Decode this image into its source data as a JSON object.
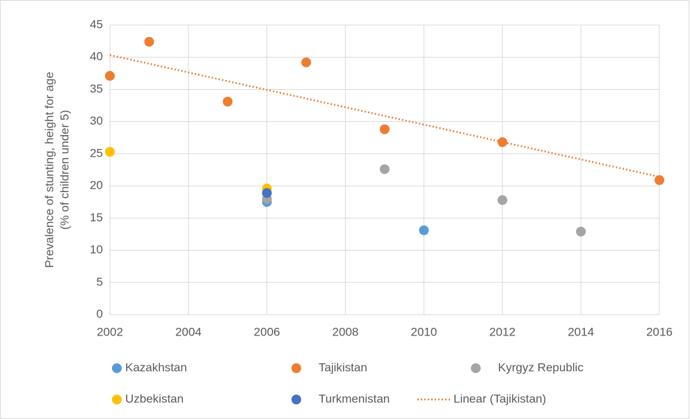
{
  "chart_data": {
    "type": "scatter",
    "y_label": [
      "Prevalence of stunting, height for age",
      "(% of children under 5)"
    ],
    "xlim": [
      2002,
      2016
    ],
    "xticks": [
      2002,
      2004,
      2006,
      2008,
      2010,
      2012,
      2014,
      2016
    ],
    "ylim": [
      0,
      45
    ],
    "yticks": [
      0,
      5,
      10,
      15,
      20,
      25,
      30,
      35,
      40,
      45
    ],
    "grid": true,
    "legend": "bottom",
    "series": [
      {
        "name": "Kazakhstan",
        "color": "#5b9bd5",
        "x": [
          2006,
          2010
        ],
        "values": [
          17.5,
          13.1
        ]
      },
      {
        "name": "Tajikistan",
        "color": "#ed7d31",
        "x": [
          2002,
          2003,
          2005,
          2007,
          2009,
          2012,
          2016
        ],
        "values": [
          37.1,
          42.4,
          33.1,
          39.2,
          28.8,
          26.8,
          20.9
        ],
        "trendline": {
          "type": "linear",
          "name": "Linear (Tajikistan)",
          "style": "dotted"
        }
      },
      {
        "name": "Kyrgyz Republic",
        "color": "#a5a5a5",
        "x": [
          2006,
          2009,
          2012,
          2014
        ],
        "values": [
          18,
          22.6,
          17.8,
          12.9
        ]
      },
      {
        "name": "Uzbekistan",
        "color": "#ffc000",
        "x": [
          2002,
          2006
        ],
        "values": [
          25.3,
          19.6
        ]
      },
      {
        "name": "Turkmenistan",
        "color": "#4472c4",
        "x": [
          2006
        ],
        "values": [
          18.9
        ]
      }
    ]
  }
}
